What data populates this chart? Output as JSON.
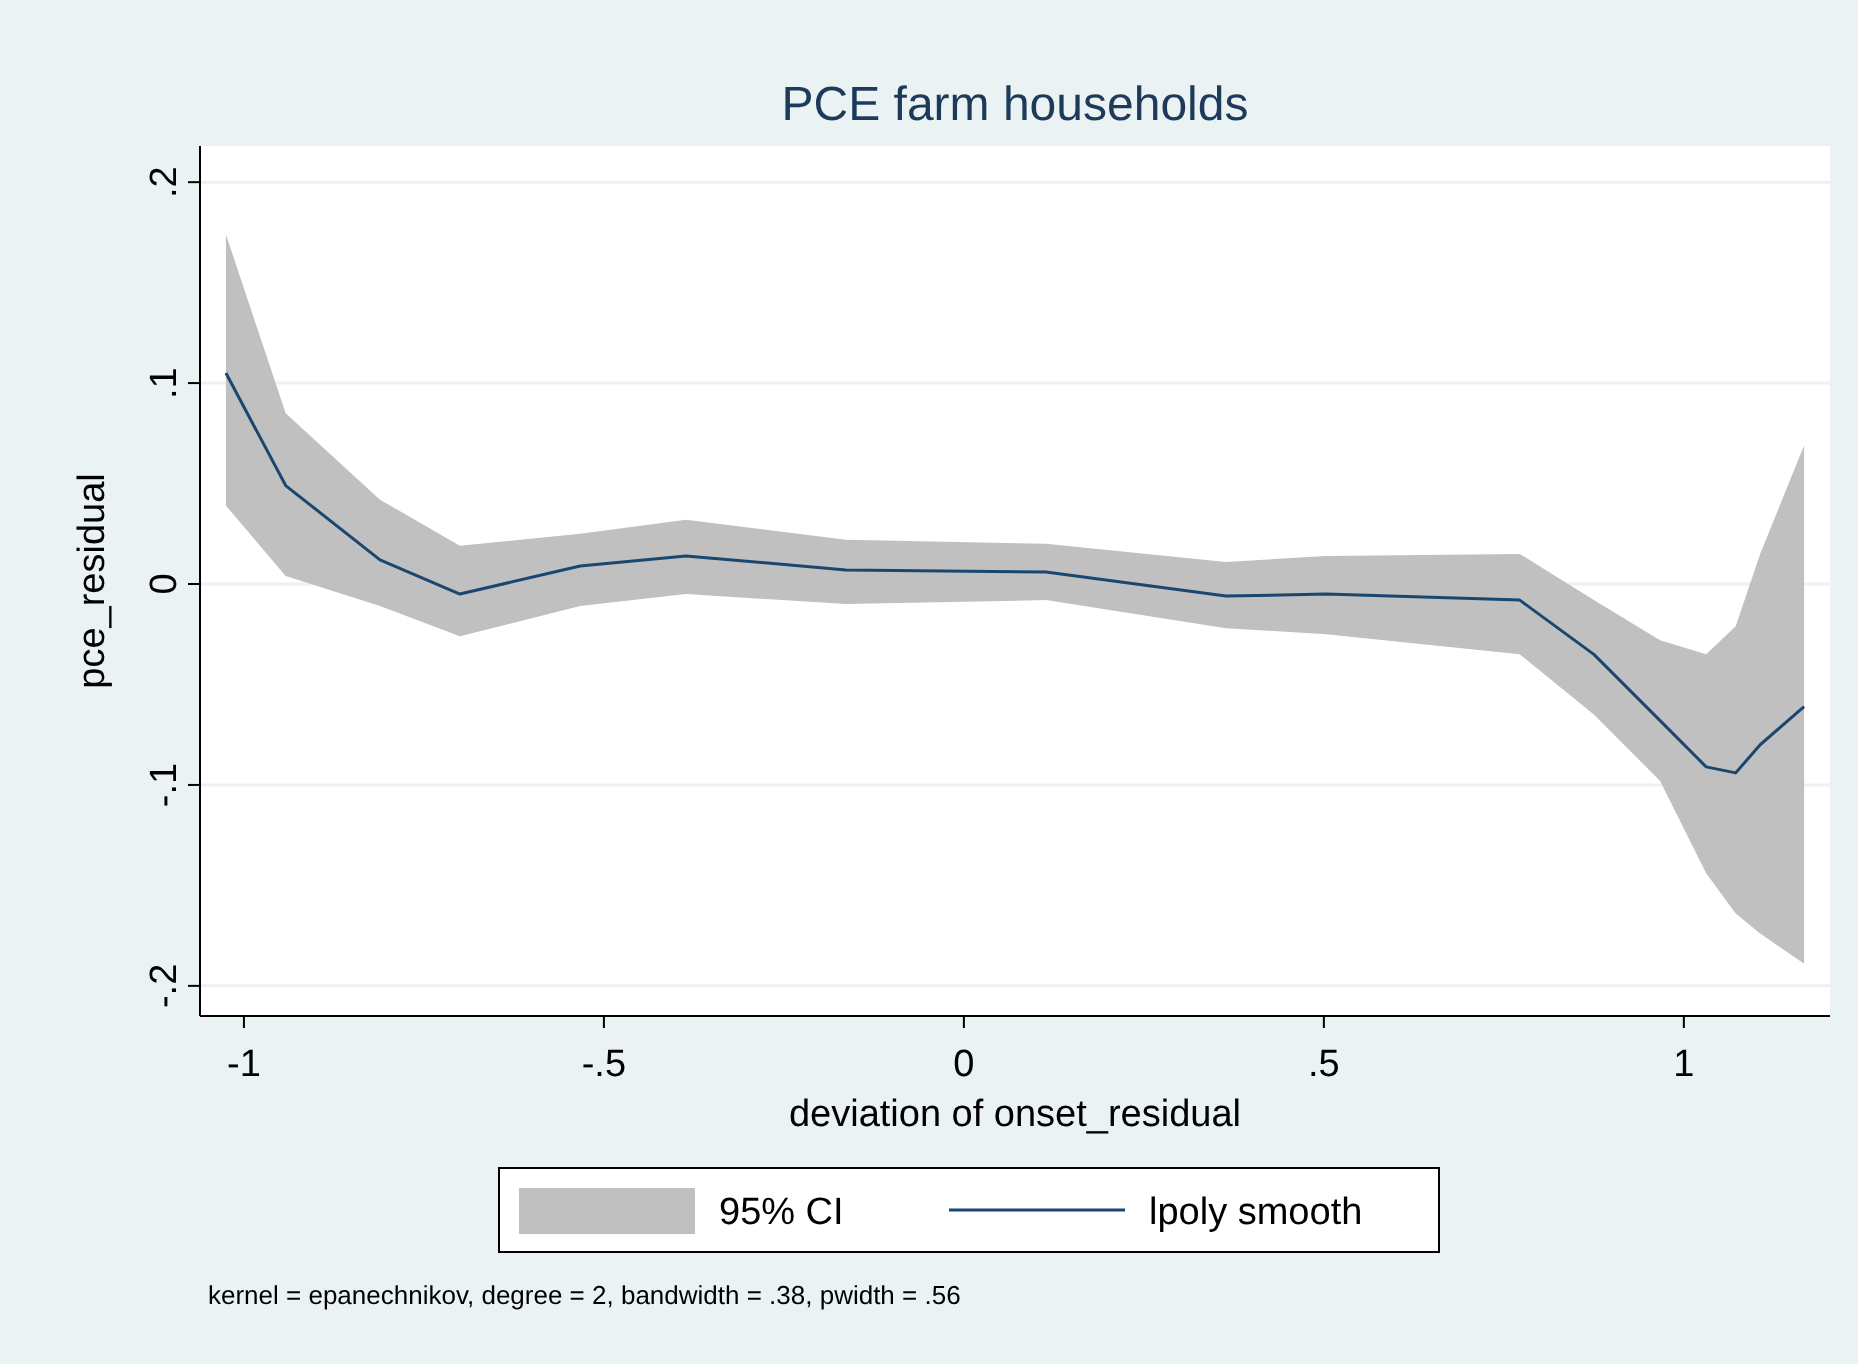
{
  "chart_data": {
    "type": "line",
    "title": "PCE farm households",
    "xlabel": "deviation of onset_residual",
    "ylabel": "pce_residual",
    "xlim": [
      -1.061,
      1.203
    ],
    "ylim": [
      -0.215,
      0.218
    ],
    "xticks": [
      -1,
      {
        "value": -0.5,
        "label": "-.5"
      },
      0,
      {
        "value": 0.5,
        "label": ".5"
      },
      1
    ],
    "yticks": [
      {
        "value": -0.2,
        "label": "-.2"
      },
      {
        "value": -0.1,
        "label": "-.1"
      },
      0,
      {
        "value": 0.1,
        "label": ".1"
      },
      {
        "value": 0.2,
        "label": ".2"
      }
    ],
    "grid": "y",
    "legend": "bottom",
    "marker": "none",
    "line_style": "solid",
    "annotations": [
      "95% CI",
      "kernel = epanechnikov, degree = 2, bandwidth = .38, pwidth = .56"
    ],
    "series": [
      {
        "name": "lpoly smooth",
        "color": "#1a476f",
        "x": [
          -1.025,
          -0.942,
          -0.811,
          -0.7,
          -0.533,
          -0.386,
          -0.164,
          0.114,
          0.364,
          0.503,
          0.772,
          0.875,
          0.967,
          1.031,
          1.072,
          1.106,
          1.167
        ],
        "values": [
          0.105,
          0.049,
          0.012,
          -0.005,
          0.009,
          0.014,
          0.007,
          0.006,
          -0.006,
          -0.005,
          -0.008,
          -0.035,
          -0.068,
          -0.091,
          -0.094,
          -0.08,
          -0.061
        ],
        "upper": [
          0.174,
          0.085,
          0.042,
          0.019,
          0.025,
          0.032,
          0.022,
          0.02,
          0.011,
          0.014,
          0.015,
          -0.008,
          -0.028,
          -0.035,
          -0.021,
          0.015,
          0.069
        ],
        "lower": [
          0.039,
          0.004,
          -0.011,
          -0.026,
          -0.011,
          -0.005,
          -0.01,
          -0.008,
          -0.022,
          -0.025,
          -0.035,
          -0.065,
          -0.098,
          -0.144,
          -0.164,
          -0.174,
          -0.189
        ]
      }
    ]
  }
}
